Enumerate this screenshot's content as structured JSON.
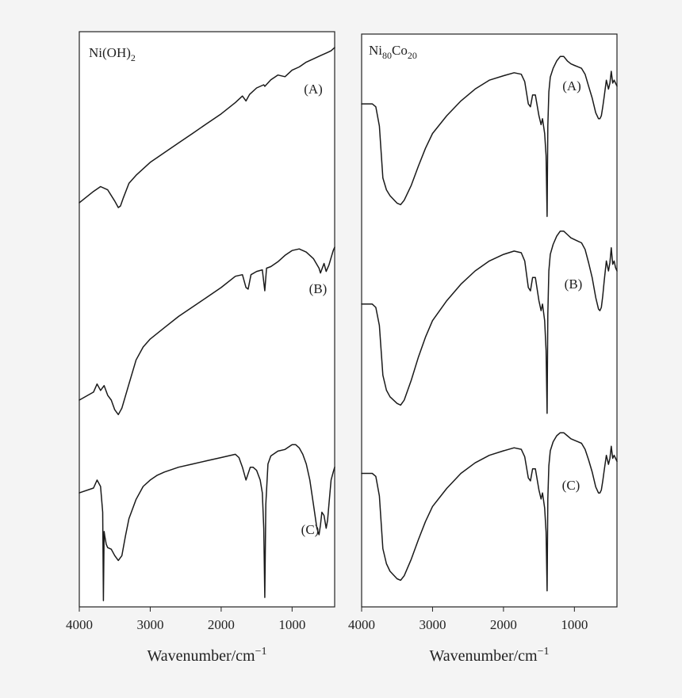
{
  "colors": {
    "background": "#f4f4f4",
    "plot_area": "#ffffff",
    "ink": "#1a1a1a"
  },
  "chart_data": [
    {
      "type": "line",
      "panel_title": "Ni(OH)2",
      "xlabel": "Wavenumber/cm−1",
      "ylabel": "",
      "xlim": [
        4000,
        400
      ],
      "xticks": [
        "4000",
        "3000",
        "2000",
        "1000"
      ],
      "y_axis_ticks": false,
      "grid": false,
      "series": [
        {
          "label": "(A)",
          "x": [
            4000,
            3800,
            3700,
            3600,
            3500,
            3450,
            3420,
            3380,
            3300,
            3200,
            3000,
            2900,
            2800,
            2600,
            2400,
            2200,
            2000,
            1800,
            1700,
            1650,
            1600,
            1500,
            1400,
            1385,
            1300,
            1200,
            1100,
            1000,
            900,
            800,
            700,
            600,
            500,
            450,
            400
          ],
          "y": [
            0.03,
            0.1,
            0.13,
            0.11,
            0.04,
            0.0,
            0.01,
            0.06,
            0.15,
            0.2,
            0.28,
            0.31,
            0.34,
            0.4,
            0.46,
            0.52,
            0.58,
            0.65,
            0.69,
            0.66,
            0.7,
            0.74,
            0.76,
            0.75,
            0.79,
            0.82,
            0.81,
            0.85,
            0.87,
            0.9,
            0.92,
            0.94,
            0.96,
            0.97,
            0.99
          ]
        },
        {
          "label": "(B)",
          "x": [
            4000,
            3800,
            3750,
            3700,
            3650,
            3600,
            3550,
            3500,
            3450,
            3400,
            3300,
            3200,
            3100,
            3000,
            2800,
            2600,
            2400,
            2200,
            2000,
            1800,
            1700,
            1650,
            1620,
            1580,
            1500,
            1420,
            1385,
            1360,
            1300,
            1200,
            1100,
            1000,
            900,
            800,
            700,
            620,
            600,
            550,
            520,
            480,
            420,
            400
          ],
          "y": [
            0.0,
            0.05,
            0.1,
            0.06,
            0.09,
            0.03,
            0.0,
            -0.06,
            -0.09,
            -0.05,
            0.1,
            0.25,
            0.33,
            0.38,
            0.45,
            0.52,
            0.58,
            0.64,
            0.7,
            0.77,
            0.78,
            0.7,
            0.69,
            0.78,
            0.8,
            0.81,
            0.68,
            0.82,
            0.83,
            0.86,
            0.9,
            0.93,
            0.94,
            0.92,
            0.88,
            0.82,
            0.79,
            0.85,
            0.8,
            0.84,
            0.93,
            0.95
          ]
        },
        {
          "label": "(C)",
          "x": [
            4000,
            3800,
            3750,
            3700,
            3670,
            3660,
            3650,
            3640,
            3620,
            3600,
            3550,
            3500,
            3450,
            3400,
            3350,
            3300,
            3200,
            3100,
            3000,
            2900,
            2800,
            2600,
            2400,
            2200,
            2000,
            1800,
            1750,
            1700,
            1650,
            1620,
            1590,
            1550,
            1500,
            1450,
            1420,
            1400,
            1385,
            1370,
            1340,
            1300,
            1200,
            1100,
            1000,
            950,
            900,
            850,
            800,
            750,
            700,
            650,
            620,
            600,
            580,
            550,
            520,
            500,
            480,
            450,
            420,
            400
          ],
          "y": [
            0.62,
            0.65,
            0.7,
            0.66,
            0.5,
            -0.05,
            0.38,
            0.35,
            0.3,
            0.28,
            0.27,
            0.23,
            0.2,
            0.23,
            0.35,
            0.46,
            0.58,
            0.66,
            0.7,
            0.73,
            0.75,
            0.78,
            0.8,
            0.82,
            0.84,
            0.86,
            0.84,
            0.78,
            0.7,
            0.74,
            0.78,
            0.78,
            0.76,
            0.7,
            0.62,
            0.4,
            -0.03,
            0.55,
            0.8,
            0.85,
            0.88,
            0.89,
            0.92,
            0.92,
            0.9,
            0.86,
            0.8,
            0.7,
            0.55,
            0.4,
            0.36,
            0.42,
            0.5,
            0.48,
            0.4,
            0.45,
            0.55,
            0.7,
            0.75,
            0.78
          ]
        }
      ]
    },
    {
      "type": "line",
      "panel_title": "Ni80Co20",
      "xlabel": "Wavenumber/cm−1",
      "ylabel": "",
      "xlim": [
        4000,
        400
      ],
      "xticks": [
        "4000",
        "3000",
        "2000",
        "1000"
      ],
      "y_axis_ticks": false,
      "grid": false,
      "series": [
        {
          "label": "(A)",
          "x": [
            4000,
            3850,
            3800,
            3750,
            3700,
            3650,
            3600,
            3500,
            3450,
            3400,
            3300,
            3200,
            3100,
            3000,
            2800,
            2600,
            2400,
            2200,
            2000,
            1850,
            1750,
            1700,
            1650,
            1620,
            1590,
            1550,
            1500,
            1470,
            1450,
            1420,
            1400,
            1385,
            1375,
            1360,
            1340,
            1300,
            1250,
            1200,
            1150,
            1100,
            1050,
            1000,
            950,
            900,
            850,
            800,
            750,
            700,
            660,
            640,
            620,
            600,
            580,
            550,
            520,
            500,
            480,
            460,
            440,
            420,
            400
          ],
          "y": [
            0.7,
            0.7,
            0.68,
            0.55,
            0.2,
            0.12,
            0.08,
            0.03,
            0.02,
            0.05,
            0.15,
            0.28,
            0.4,
            0.5,
            0.62,
            0.72,
            0.8,
            0.86,
            0.89,
            0.91,
            0.9,
            0.85,
            0.7,
            0.68,
            0.76,
            0.76,
            0.62,
            0.56,
            0.6,
            0.5,
            0.35,
            -0.06,
            0.55,
            0.78,
            0.88,
            0.94,
            0.99,
            1.02,
            1.02,
            0.99,
            0.97,
            0.96,
            0.95,
            0.94,
            0.9,
            0.82,
            0.74,
            0.64,
            0.6,
            0.6,
            0.62,
            0.68,
            0.75,
            0.86,
            0.8,
            0.84,
            0.92,
            0.84,
            0.86,
            0.84,
            0.82
          ]
        },
        {
          "label": "(B)",
          "x": [
            4000,
            3850,
            3800,
            3750,
            3700,
            3650,
            3600,
            3500,
            3450,
            3400,
            3300,
            3200,
            3100,
            3000,
            2800,
            2600,
            2400,
            2200,
            2000,
            1850,
            1750,
            1700,
            1650,
            1620,
            1590,
            1550,
            1500,
            1470,
            1450,
            1420,
            1400,
            1385,
            1375,
            1360,
            1340,
            1300,
            1250,
            1200,
            1150,
            1100,
            1050,
            1000,
            950,
            900,
            850,
            800,
            750,
            700,
            660,
            640,
            620,
            600,
            580,
            550,
            520,
            500,
            480,
            460,
            440,
            420,
            400
          ],
          "y": [
            0.58,
            0.58,
            0.56,
            0.45,
            0.15,
            0.06,
            0.02,
            -0.02,
            -0.03,
            0.0,
            0.12,
            0.26,
            0.38,
            0.48,
            0.6,
            0.7,
            0.78,
            0.84,
            0.88,
            0.9,
            0.89,
            0.84,
            0.68,
            0.66,
            0.74,
            0.74,
            0.6,
            0.54,
            0.58,
            0.48,
            0.3,
            -0.08,
            0.52,
            0.78,
            0.88,
            0.94,
            0.99,
            1.02,
            1.02,
            1.0,
            0.98,
            0.97,
            0.96,
            0.95,
            0.91,
            0.83,
            0.74,
            0.62,
            0.55,
            0.54,
            0.56,
            0.63,
            0.72,
            0.84,
            0.78,
            0.83,
            0.92,
            0.82,
            0.84,
            0.8,
            0.78
          ]
        },
        {
          "label": "(C)",
          "x": [
            4000,
            3850,
            3800,
            3750,
            3700,
            3650,
            3600,
            3500,
            3450,
            3400,
            3300,
            3200,
            3100,
            3000,
            2800,
            2600,
            2400,
            2200,
            2000,
            1850,
            1750,
            1700,
            1650,
            1620,
            1590,
            1550,
            1500,
            1470,
            1450,
            1420,
            1400,
            1385,
            1375,
            1360,
            1340,
            1300,
            1250,
            1200,
            1150,
            1100,
            1050,
            1000,
            950,
            900,
            850,
            800,
            750,
            700,
            660,
            640,
            620,
            600,
            580,
            550,
            520,
            500,
            480,
            460,
            440,
            420,
            400
          ],
          "y": [
            0.75,
            0.75,
            0.73,
            0.6,
            0.25,
            0.15,
            0.1,
            0.05,
            0.04,
            0.07,
            0.18,
            0.31,
            0.43,
            0.53,
            0.65,
            0.75,
            0.82,
            0.87,
            0.9,
            0.92,
            0.91,
            0.86,
            0.72,
            0.7,
            0.78,
            0.78,
            0.64,
            0.58,
            0.62,
            0.52,
            0.36,
            -0.03,
            0.58,
            0.8,
            0.9,
            0.96,
            1.0,
            1.02,
            1.02,
            1.0,
            0.98,
            0.97,
            0.96,
            0.95,
            0.91,
            0.84,
            0.76,
            0.66,
            0.62,
            0.62,
            0.64,
            0.7,
            0.77,
            0.87,
            0.81,
            0.85,
            0.93,
            0.85,
            0.87,
            0.85,
            0.83
          ]
        }
      ]
    }
  ]
}
